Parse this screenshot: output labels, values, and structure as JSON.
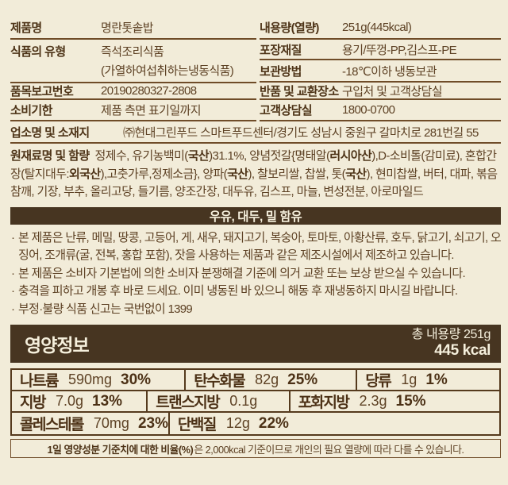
{
  "colors": {
    "background": "#f2ecd9",
    "band_brown": "#473521",
    "text_brown": "#5d4124",
    "label_brown": "#4e3418",
    "line_brown": "#6f4c28"
  },
  "bullet": "·",
  "info_left": [
    {
      "label": "제품명",
      "value": "명란톳솥밥"
    },
    {
      "label": "식품의 유형",
      "value": "즉석조리식품",
      "value2": "(가열하여섭취하는냉동식품)"
    },
    {
      "label": "품목보고번호",
      "value": "20190280327-2808"
    },
    {
      "label": "소비기한",
      "value": "제품 측면 표기일까지"
    }
  ],
  "info_right": [
    {
      "label": "내용량(열량)",
      "value": "251g(445kcal)"
    },
    {
      "label": "포장재질",
      "value": "용기/뚜껑-PP,김스프-PE"
    },
    {
      "label": "보관방법",
      "value": "-18℃이하 냉동보관"
    },
    {
      "label": "반품 및 교환장소",
      "value": "구입처 및 고객상담실"
    },
    {
      "label": "고객상담실",
      "value": "1800-0700"
    }
  ],
  "business": {
    "label": "업소명 및 소재지",
    "value": "㈜현대그린푸드 스마트푸드센터/경기도 성남시 중원구 갈마치로 281번길 55"
  },
  "ingredients": {
    "label": "원재료명 및 함량",
    "segments": [
      {
        "t": "정제수, 유기농백미("
      },
      {
        "t": "국산",
        "b": true
      },
      {
        "t": ")31.1%, 양념젓갈{명태알("
      },
      {
        "t": "러시아산",
        "b": true
      },
      {
        "t": "),D-소비톨(감미료), 혼합간장(탈지대두:"
      },
      {
        "t": "외국산",
        "b": true
      },
      {
        "t": "),고춧가루,정제소금}, 양파("
      },
      {
        "t": "국산",
        "b": true
      },
      {
        "t": "), 찰보리쌀, 찹쌀, 톳("
      },
      {
        "t": "국산",
        "b": true
      },
      {
        "t": "), 현미찹쌀, 버터, 대파, 볶음참깨, 기장, 부추, 올리고당, 들기름, 양조간장, 대두유, 김스프, 마늘, 변성전분, 아로마일드"
      }
    ]
  },
  "allergen_band": "우유, 대두, 밀 함유",
  "notices": [
    "본 제품은 난류, 메밀, 땅콩, 고등어, 게, 새우, 돼지고기, 복숭아, 토마토, 아황산류, 호두, 닭고기, 쇠고기, 오징어, 조개류(굴, 전복, 홍합 포함), 잣을 사용하는 제품과 같은 제조시설에서 제조하고 있습니다.",
    "본 제품은 소비자 기본법에 의한 소비자 분쟁해결 기준에 의거 교환 또는 보상 받으실 수 있습니다.",
    "충격을 피하고 개봉 후 바로 드세요. 이미 냉동된 바 있으니 해동 후 재냉동하지 마시길 바랍니다.",
    "부정·불량 식품 신고는 국번없이 1399"
  ],
  "nutrition": {
    "title": "영양정보",
    "total_line1": "총 내용량 251g",
    "total_line2": "445 kcal",
    "rows": [
      [
        {
          "name": "나트륨",
          "amount": "590mg",
          "pct": "30%"
        },
        {
          "name": "탄수화물",
          "amount": "82g",
          "pct": "25%"
        },
        {
          "name": "당류",
          "amount": "1g",
          "pct": "1%"
        }
      ],
      [
        {
          "name": "지방",
          "amount": "7.0g",
          "pct": "13%"
        },
        {
          "name": "트랜스지방",
          "amount": "0.1g",
          "pct": ""
        },
        {
          "name": "포화지방",
          "amount": "2.3g",
          "pct": "15%"
        }
      ],
      [
        {
          "name": "콜레스테롤",
          "amount": "70mg",
          "pct": "23%"
        },
        {
          "name": "단백질",
          "amount": "12g",
          "pct": "22%"
        }
      ]
    ],
    "footnote_bold": "1일 영양성분 기준치에 대한 비율(%)",
    "footnote_rest": "은 2,000kcal 기준이므로 개인의 필요 열량에 따라 다를 수 있습니다."
  }
}
